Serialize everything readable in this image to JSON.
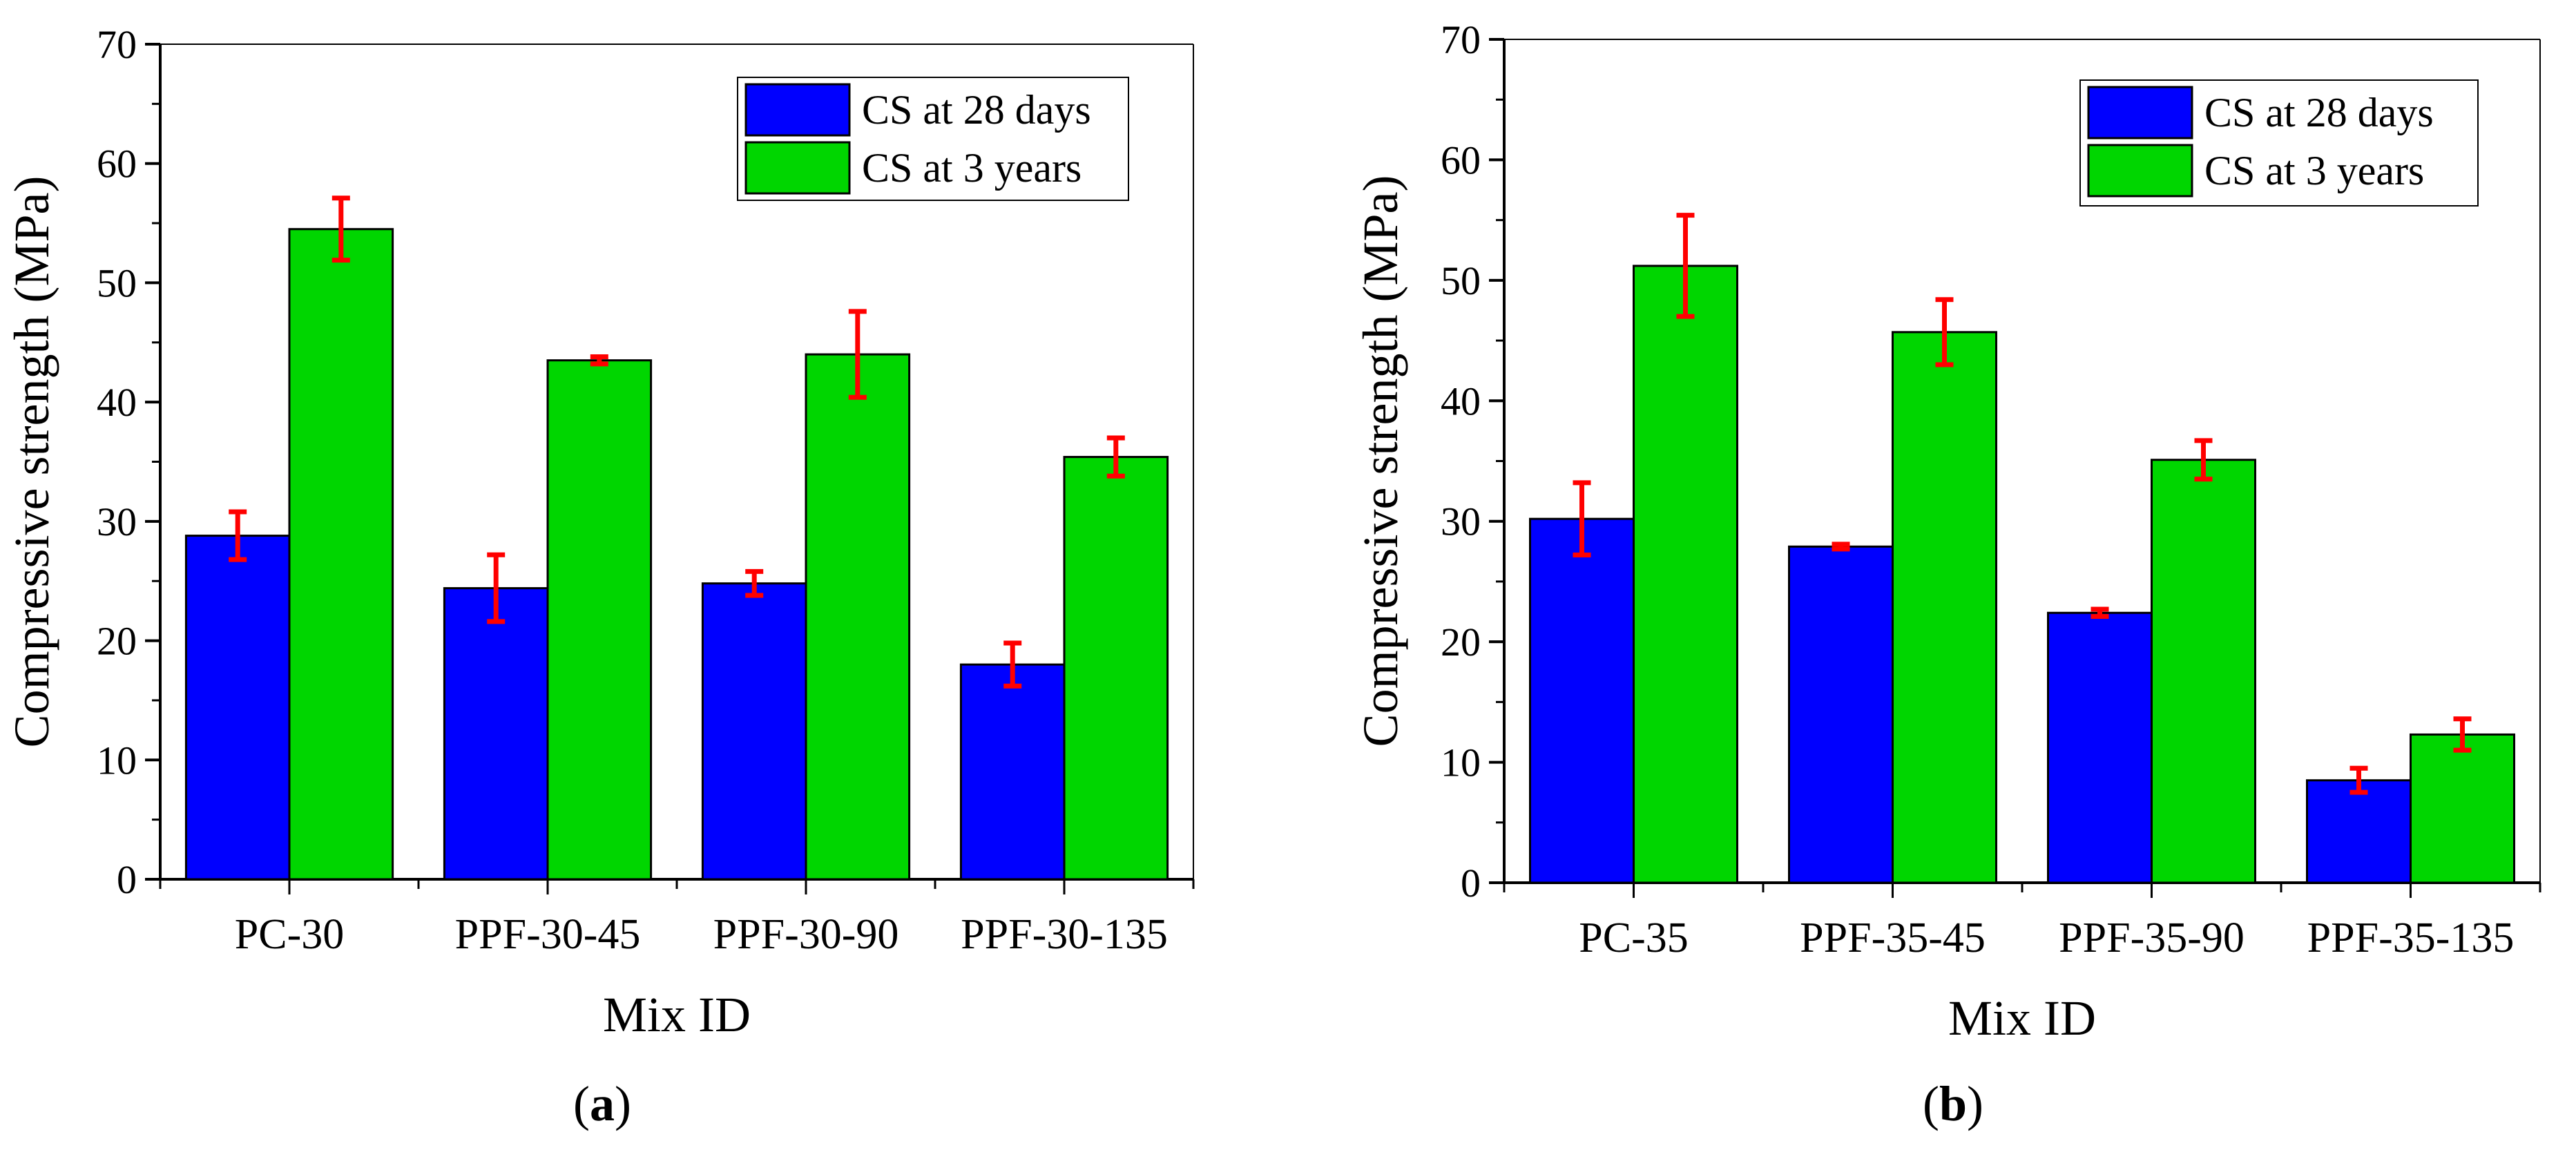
{
  "chart_data": [
    {
      "type": "bar",
      "panel_label": "(a)",
      "panel_letter": "a",
      "xlabel": "Mix ID",
      "ylabel": "Compressive  strength (MPa)",
      "ylim": [
        0,
        70
      ],
      "yticks": [
        0,
        10,
        20,
        30,
        40,
        50,
        60,
        70
      ],
      "categories": [
        "PC-30",
        "PPF-30-45",
        "PPF-30-90",
        "PPF-30-135"
      ],
      "legend_position": "top-right",
      "series": [
        {
          "name": "CS at 28 days",
          "color": "#0000ff",
          "values": [
            28.8,
            24.4,
            24.8,
            18.0
          ],
          "errors": [
            2.0,
            2.8,
            1.0,
            1.8
          ]
        },
        {
          "name": "CS at 3 years",
          "color": "#00d600",
          "values": [
            54.5,
            43.5,
            44.0,
            35.4
          ],
          "errors": [
            2.6,
            0.3,
            3.6,
            1.6
          ]
        }
      ],
      "error_bar_color": "#ff0000"
    },
    {
      "type": "bar",
      "panel_label": "(b)",
      "panel_letter": "b",
      "xlabel": "Mix ID",
      "ylabel": "Compressive  strength (MPa)",
      "ylim": [
        0,
        70
      ],
      "yticks": [
        0,
        10,
        20,
        30,
        40,
        50,
        60,
        70
      ],
      "categories": [
        "PC-35",
        "PPF-35-45",
        "PPF-35-90",
        "PPF-35-135"
      ],
      "legend_position": "top-right",
      "series": [
        {
          "name": "CS at 28 days",
          "color": "#0000ff",
          "values": [
            30.2,
            27.9,
            22.4,
            8.5
          ],
          "errors": [
            3.0,
            0.2,
            0.3,
            1.0
          ]
        },
        {
          "name": "CS at 3 years",
          "color": "#00d600",
          "values": [
            51.2,
            45.7,
            35.1,
            12.3
          ],
          "errors": [
            4.2,
            2.7,
            1.6,
            1.3
          ]
        }
      ],
      "error_bar_color": "#ff0000"
    }
  ]
}
